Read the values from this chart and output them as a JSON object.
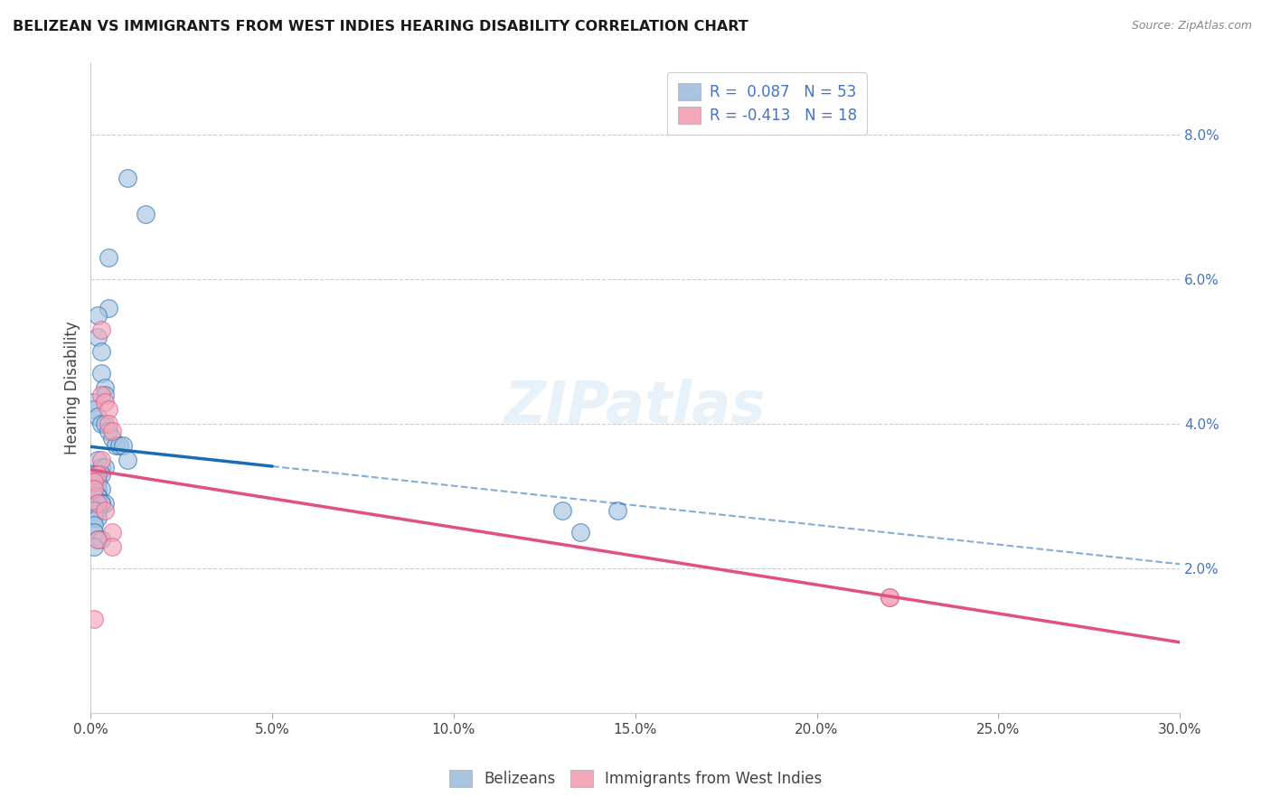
{
  "title": "BELIZEAN VS IMMIGRANTS FROM WEST INDIES HEARING DISABILITY CORRELATION CHART",
  "source": "Source: ZipAtlas.com",
  "ylabel": "Hearing Disability",
  "xlim": [
    0.0,
    30.0
  ],
  "ylim": [
    0.0,
    9.0
  ],
  "xticks": [
    0.0,
    5.0,
    10.0,
    15.0,
    20.0,
    25.0,
    30.0
  ],
  "xtick_labels": [
    "0.0%",
    "5.0%",
    "10.0%",
    "15.0%",
    "20.0%",
    "25.0%",
    "30.0%"
  ],
  "yticks_right": [
    2.0,
    4.0,
    6.0,
    8.0
  ],
  "ytick_labels_right": [
    "2.0%",
    "4.0%",
    "6.0%",
    "8.0%"
  ],
  "r_blue": 0.087,
  "n_blue": 53,
  "r_pink": -0.413,
  "n_pink": 18,
  "legend_label_blue": "Belizeans",
  "legend_label_pink": "Immigrants from West Indies",
  "blue_color": "#a8c4e0",
  "pink_color": "#f4a7b9",
  "blue_line_color": "#1a6bb5",
  "pink_line_color": "#e05080",
  "watermark": "ZIPatlas",
  "blue_points_x": [
    1.0,
    1.5,
    0.5,
    0.5,
    0.2,
    0.2,
    0.3,
    0.3,
    0.4,
    0.4,
    0.1,
    0.1,
    0.2,
    0.3,
    0.4,
    0.5,
    0.6,
    0.7,
    0.8,
    0.9,
    1.0,
    0.2,
    0.3,
    0.4,
    0.1,
    0.2,
    0.3,
    0.1,
    0.2,
    0.1,
    0.2,
    0.3,
    0.2,
    0.1,
    0.1,
    0.2,
    0.2,
    0.3,
    0.4,
    0.3,
    0.2,
    0.1,
    0.1,
    0.1,
    0.2,
    0.1,
    0.1,
    0.2,
    0.3,
    0.1,
    13.0,
    13.5,
    14.5
  ],
  "blue_points_y": [
    7.4,
    6.9,
    6.3,
    5.6,
    5.5,
    5.2,
    5.0,
    4.7,
    4.5,
    4.4,
    4.3,
    4.2,
    4.1,
    4.0,
    4.0,
    3.9,
    3.8,
    3.7,
    3.7,
    3.7,
    3.5,
    3.5,
    3.4,
    3.4,
    3.3,
    3.3,
    3.3,
    3.2,
    3.2,
    3.1,
    3.1,
    3.1,
    3.0,
    3.0,
    3.0,
    3.0,
    2.9,
    2.9,
    2.9,
    2.9,
    2.8,
    2.8,
    2.8,
    2.7,
    2.7,
    2.6,
    2.5,
    2.4,
    2.4,
    2.3,
    2.8,
    2.5,
    2.8
  ],
  "pink_points_x": [
    0.3,
    0.3,
    0.4,
    0.5,
    0.5,
    0.6,
    0.3,
    0.2,
    0.1,
    0.1,
    0.2,
    0.4,
    0.6,
    0.2,
    0.6,
    0.1,
    22.0,
    22.0
  ],
  "pink_points_y": [
    5.3,
    4.4,
    4.3,
    4.2,
    4.0,
    3.9,
    3.5,
    3.3,
    3.2,
    3.1,
    2.9,
    2.8,
    2.5,
    2.4,
    2.3,
    1.3,
    1.6,
    1.6
  ],
  "blue_dashed_start_x": 5.0
}
